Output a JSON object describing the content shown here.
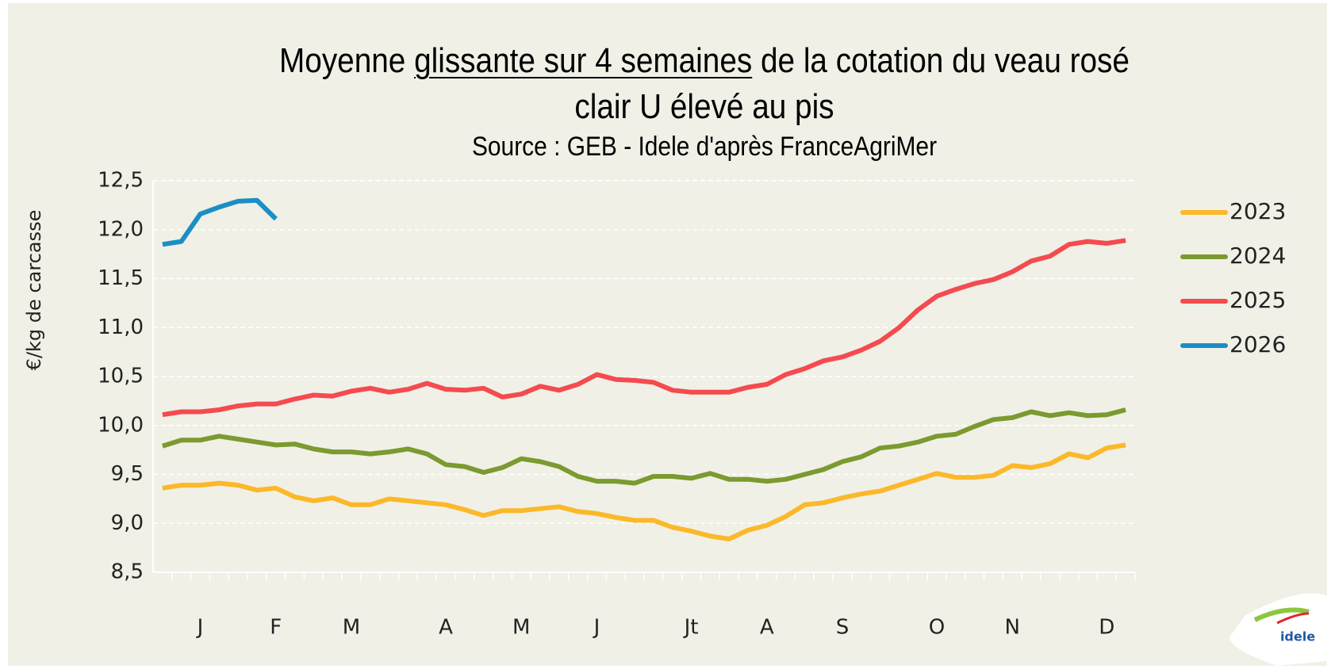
{
  "chart_data": {
    "type": "line",
    "title": {
      "prefix": "Moyenne",
      "underlined": "glissante sur 4 semaines",
      "suffix": "de la cotation du veau rosé clair U élevé au pis"
    },
    "subtitle": "Source : GEB - Idele d'après FranceAgriMer",
    "y_label": "€/kg de carcasse",
    "logo": "idele",
    "categories": [
      null,
      null,
      "J",
      null,
      null,
      null,
      "F",
      null,
      null,
      null,
      "M",
      null,
      null,
      null,
      null,
      "A",
      null,
      null,
      null,
      "M",
      null,
      null,
      null,
      "J",
      null,
      null,
      null,
      null,
      "Jt",
      null,
      null,
      null,
      "A",
      null,
      null,
      null,
      "S",
      null,
      null,
      null,
      null,
      "O",
      null,
      null,
      null,
      "N",
      null,
      null,
      null,
      null,
      "D",
      null
    ],
    "ylim": [
      8.5,
      12.5
    ],
    "yticks": [
      {
        "value": 8.5,
        "label": "8,5"
      },
      {
        "value": 9.0,
        "label": "9,0"
      },
      {
        "value": 9.5,
        "label": "9,5"
      },
      {
        "value": 10.0,
        "label": "10,0"
      },
      {
        "value": 10.5,
        "label": "10,5"
      },
      {
        "value": 11.0,
        "label": "11,0"
      },
      {
        "value": 11.5,
        "label": "11,5"
      },
      {
        "value": 12.0,
        "label": "12,0"
      },
      {
        "value": 12.5,
        "label": "12,5"
      }
    ],
    "grid": true,
    "legend": "right",
    "series": [
      {
        "name": "2023",
        "color": "#fbb829",
        "values": [
          9.36,
          9.39,
          9.39,
          9.41,
          9.39,
          9.34,
          9.36,
          9.27,
          9.23,
          9.26,
          9.19,
          9.19,
          9.25,
          9.23,
          9.21,
          9.19,
          9.14,
          9.08,
          9.13,
          9.13,
          9.15,
          9.17,
          9.12,
          9.1,
          9.06,
          9.03,
          9.03,
          8.96,
          8.92,
          8.87,
          8.84,
          8.93,
          8.98,
          9.07,
          9.19,
          9.21,
          9.26,
          9.3,
          9.33,
          9.39,
          9.45,
          9.51,
          9.47,
          9.47,
          9.49,
          9.59,
          9.57,
          9.61,
          9.71,
          9.67,
          9.77,
          9.8
        ]
      },
      {
        "name": "2024",
        "color": "#7b9a2f",
        "values": [
          9.79,
          9.85,
          9.85,
          9.89,
          9.86,
          9.83,
          9.8,
          9.81,
          9.76,
          9.73,
          9.73,
          9.71,
          9.73,
          9.76,
          9.71,
          9.6,
          9.58,
          9.52,
          9.57,
          9.66,
          9.63,
          9.58,
          9.48,
          9.43,
          9.43,
          9.41,
          9.48,
          9.48,
          9.46,
          9.51,
          9.45,
          9.45,
          9.43,
          9.45,
          9.5,
          9.55,
          9.63,
          9.68,
          9.77,
          9.79,
          9.83,
          9.89,
          9.91,
          9.99,
          10.06,
          10.08,
          10.14,
          10.1,
          10.13,
          10.1,
          10.11,
          10.16
        ]
      },
      {
        "name": "2025",
        "color": "#f44b4f",
        "values": [
          10.11,
          10.14,
          10.14,
          10.16,
          10.2,
          10.22,
          10.22,
          10.27,
          10.31,
          10.3,
          10.35,
          10.38,
          10.34,
          10.37,
          10.43,
          10.37,
          10.36,
          10.38,
          10.29,
          10.32,
          10.4,
          10.36,
          10.42,
          10.52,
          10.47,
          10.46,
          10.44,
          10.36,
          10.34,
          10.34,
          10.34,
          10.39,
          10.42,
          10.52,
          10.58,
          10.66,
          10.7,
          10.77,
          10.86,
          11.0,
          11.18,
          11.32,
          11.39,
          11.45,
          11.49,
          11.57,
          11.68,
          11.73,
          11.85,
          11.88,
          11.86,
          11.89
        ]
      },
      {
        "name": "2026",
        "color": "#1b8fc5",
        "values": [
          11.85,
          11.88,
          12.16,
          12.23,
          12.29,
          12.3,
          12.11,
          null,
          null,
          null,
          null,
          null,
          null,
          null,
          null,
          null,
          null,
          null,
          null,
          null,
          null,
          null,
          null,
          null,
          null,
          null,
          null,
          null,
          null,
          null,
          null,
          null,
          null,
          null,
          null,
          null,
          null,
          null,
          null,
          null,
          null,
          null,
          null,
          null,
          null,
          null,
          null,
          null,
          null,
          null,
          null,
          null
        ]
      }
    ]
  }
}
